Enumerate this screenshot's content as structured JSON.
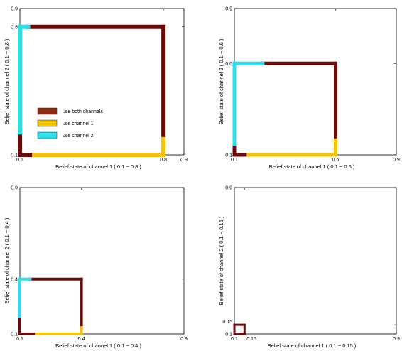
{
  "colors": {
    "both": "#6e0a0a",
    "channel1": "#f5c400",
    "channel2": "#29e0ea"
  },
  "legend": {
    "placement": "left-bottom-of-first-panel",
    "entries": [
      {
        "label": "use both channels",
        "color": "#8b2a10"
      },
      {
        "label": "use channel 1",
        "color": "#f5c400"
      },
      {
        "label": "use channel 2",
        "color": "#29e0ea"
      }
    ]
  },
  "chart_data": [
    {
      "type": "line",
      "xlabel": "Belief state of channel 1 ( 0.1 − 0.8 )",
      "ylabel": "Belief state of channel 2 ( 0.1 − 0.8 )",
      "xlim": [
        0.1,
        0.9
      ],
      "ylim": [
        0.1,
        0.9
      ],
      "xticks": [
        "0.1",
        "0.8",
        "0.9"
      ],
      "xtick_values": [
        0.1,
        0.8,
        0.9
      ],
      "yticks": [
        "0.1",
        "0.8",
        "0.9"
      ],
      "ytick_values": [
        0.1,
        0.8,
        0.9
      ],
      "segments": [
        {
          "policy": "both",
          "points": [
            [
              0.1,
              0.1
            ],
            [
              0.17,
              0.1
            ]
          ]
        },
        {
          "policy": "channel1",
          "points": [
            [
              0.17,
              0.1
            ],
            [
              0.8,
              0.1
            ]
          ]
        },
        {
          "policy": "channel1",
          "points": [
            [
              0.8,
              0.1
            ],
            [
              0.8,
              0.21
            ]
          ]
        },
        {
          "policy": "both",
          "points": [
            [
              0.8,
              0.21
            ],
            [
              0.8,
              0.8
            ]
          ]
        },
        {
          "policy": "both",
          "points": [
            [
              0.8,
              0.8
            ],
            [
              0.14,
              0.8
            ]
          ]
        },
        {
          "policy": "channel2",
          "points": [
            [
              0.14,
              0.8
            ],
            [
              0.1,
              0.8
            ]
          ]
        },
        {
          "policy": "channel2",
          "points": [
            [
              0.1,
              0.8
            ],
            [
              0.1,
              0.2
            ]
          ]
        },
        {
          "policy": "both",
          "points": [
            [
              0.1,
              0.2
            ],
            [
              0.1,
              0.1
            ]
          ]
        }
      ]
    },
    {
      "type": "line",
      "xlabel": "Belief state of channel 1 ( 0.1 − 0.6 )",
      "ylabel": "Belief state of channel 2 ( 0.1 − 0.6 )",
      "xlim": [
        0.1,
        0.9
      ],
      "ylim": [
        0.1,
        0.9
      ],
      "xticks": [
        "0.1",
        "0.6",
        "0.9"
      ],
      "xtick_values": [
        0.1,
        0.6,
        0.9
      ],
      "yticks": [
        "0.1",
        "0.6",
        "0.9"
      ],
      "ytick_values": [
        0.1,
        0.6,
        0.9
      ],
      "segments": [
        {
          "policy": "both",
          "points": [
            [
              0.1,
              0.1
            ],
            [
              0.17,
              0.1
            ]
          ]
        },
        {
          "policy": "channel1",
          "points": [
            [
              0.17,
              0.1
            ],
            [
              0.6,
              0.1
            ]
          ]
        },
        {
          "policy": "channel1",
          "points": [
            [
              0.6,
              0.1
            ],
            [
              0.6,
              0.2
            ]
          ]
        },
        {
          "policy": "both",
          "points": [
            [
              0.6,
              0.2
            ],
            [
              0.6,
              0.6
            ]
          ]
        },
        {
          "policy": "both",
          "points": [
            [
              0.6,
              0.6
            ],
            [
              0.24,
              0.6
            ]
          ]
        },
        {
          "policy": "channel2",
          "points": [
            [
              0.24,
              0.6
            ],
            [
              0.1,
              0.6
            ]
          ]
        },
        {
          "policy": "channel2",
          "points": [
            [
              0.1,
              0.6
            ],
            [
              0.1,
              0.14
            ]
          ]
        },
        {
          "policy": "both",
          "points": [
            [
              0.1,
              0.14
            ],
            [
              0.1,
              0.1
            ]
          ]
        }
      ]
    },
    {
      "type": "line",
      "xlabel": "Belief state of channel 1 ( 0.1 − 0.4 )",
      "ylabel": "Belief state of channel 2 ( 0.1 − 0.4 )",
      "xlim": [
        0.1,
        0.9
      ],
      "ylim": [
        0.1,
        0.9
      ],
      "xticks": [
        "0.1",
        "0.4",
        "0.9"
      ],
      "xtick_values": [
        0.1,
        0.4,
        0.9
      ],
      "yticks": [
        "0.1",
        "0.4",
        "0.9"
      ],
      "ytick_values": [
        0.1,
        0.4,
        0.9
      ],
      "segments": [
        {
          "policy": "both",
          "points": [
            [
              0.1,
              0.1
            ],
            [
              0.18,
              0.1
            ]
          ]
        },
        {
          "policy": "channel1",
          "points": [
            [
              0.18,
              0.1
            ],
            [
              0.4,
              0.1
            ]
          ]
        },
        {
          "policy": "channel1",
          "points": [
            [
              0.4,
              0.1
            ],
            [
              0.4,
              0.15
            ]
          ]
        },
        {
          "policy": "both",
          "points": [
            [
              0.4,
              0.15
            ],
            [
              0.4,
              0.4
            ]
          ]
        },
        {
          "policy": "both",
          "points": [
            [
              0.4,
              0.4
            ],
            [
              0.15,
              0.4
            ]
          ]
        },
        {
          "policy": "channel2",
          "points": [
            [
              0.15,
              0.4
            ],
            [
              0.1,
              0.4
            ]
          ]
        },
        {
          "policy": "channel2",
          "points": [
            [
              0.1,
              0.4
            ],
            [
              0.1,
              0.18
            ]
          ]
        },
        {
          "policy": "both",
          "points": [
            [
              0.1,
              0.18
            ],
            [
              0.1,
              0.1
            ]
          ]
        }
      ]
    },
    {
      "type": "line",
      "xlabel": "Belief state of channel 1 ( 0.1 − 0.15 )",
      "ylabel": "Belief state of channel 2 ( 0.1 − 0.15 )",
      "xlim": [
        0.1,
        0.9
      ],
      "ylim": [
        0.1,
        0.9
      ],
      "xticks": [
        "0.1",
        "0.15",
        "0.9"
      ],
      "xtick_values": [
        0.1,
        0.15,
        0.9
      ],
      "yticks": [
        "0.1",
        "0.15",
        "0.9"
      ],
      "ytick_values": [
        0.1,
        0.15,
        0.9
      ],
      "segments": [
        {
          "policy": "both",
          "points": [
            [
              0.1,
              0.1
            ],
            [
              0.15,
              0.1
            ]
          ]
        },
        {
          "policy": "both",
          "points": [
            [
              0.15,
              0.1
            ],
            [
              0.15,
              0.15
            ]
          ]
        },
        {
          "policy": "both",
          "points": [
            [
              0.15,
              0.15
            ],
            [
              0.1,
              0.15
            ]
          ]
        },
        {
          "policy": "both",
          "points": [
            [
              0.1,
              0.15
            ],
            [
              0.1,
              0.1
            ]
          ]
        }
      ]
    }
  ]
}
